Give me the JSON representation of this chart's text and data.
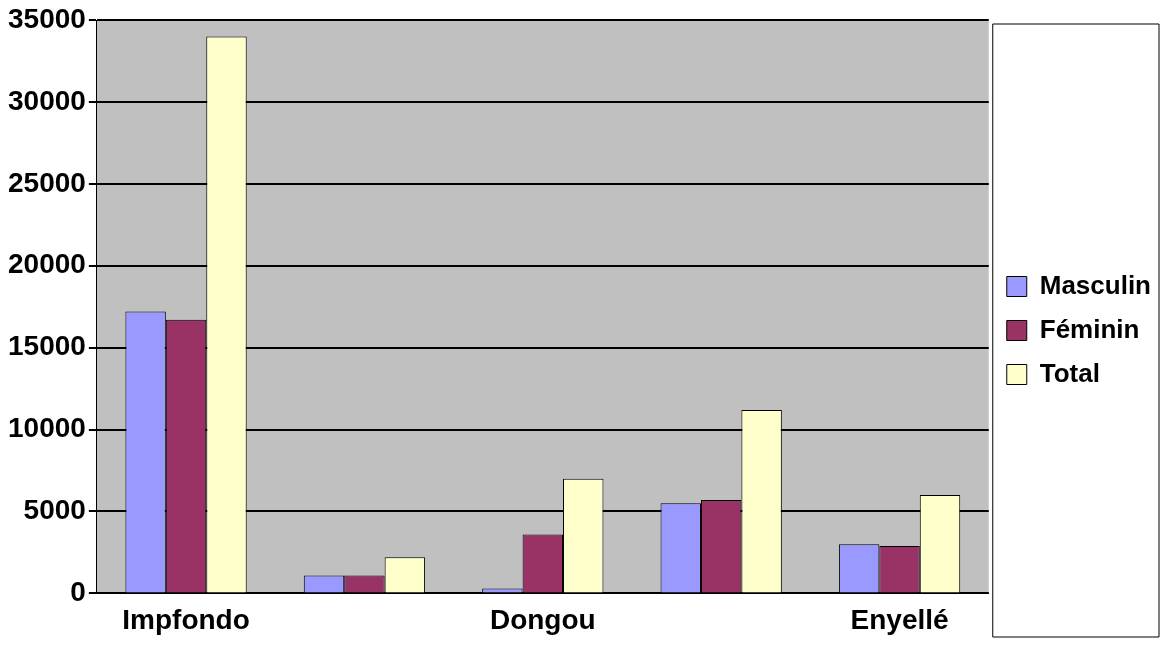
{
  "chart_data": {
    "type": "bar",
    "categories": [
      "Impfondo",
      null,
      "Dongou",
      null,
      "Enyellé"
    ],
    "series": [
      {
        "name": "Masculin",
        "color": "#9999ff",
        "values": [
          17200,
          1100,
          300,
          5500,
          3000
        ]
      },
      {
        "name": "Féminin",
        "color": "#993366",
        "values": [
          16700,
          1100,
          3600,
          5700,
          2900
        ]
      },
      {
        "name": "Total",
        "color": "#ffffcc",
        "values": [
          34000,
          2200,
          7000,
          11200,
          6000
        ]
      }
    ],
    "ylim": [
      0,
      35000
    ],
    "yticks": [
      0,
      5000,
      10000,
      15000,
      20000,
      25000,
      30000,
      35000
    ],
    "grid": "y",
    "legend": "right"
  }
}
